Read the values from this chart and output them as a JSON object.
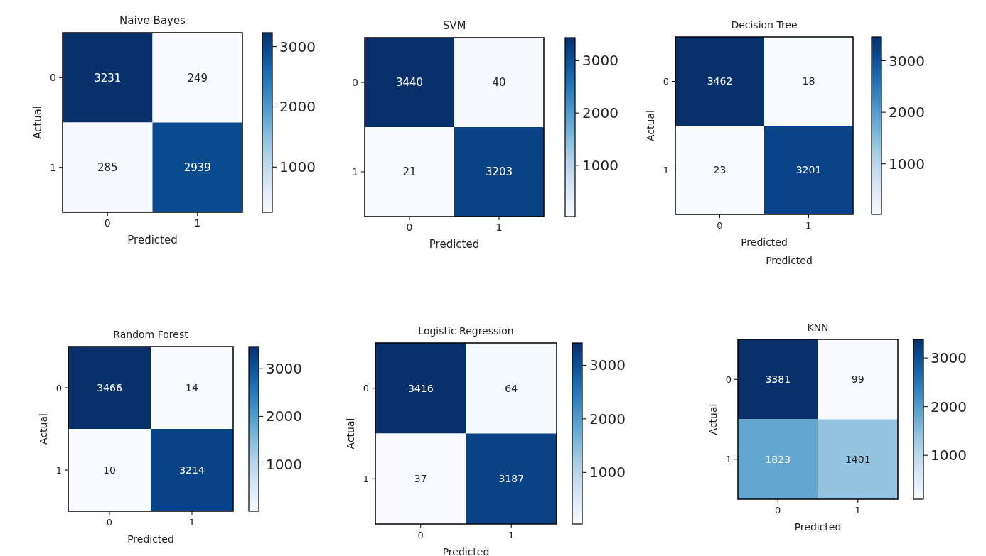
{
  "chart_data": [
    {
      "type": "heatmap",
      "title": "Naive Bayes",
      "xlabel": "Predicted",
      "ylabel": "Actual",
      "categories": [
        "0",
        "1"
      ],
      "y_categories": [
        "0",
        "1"
      ],
      "cells": [
        [
          3231,
          249
        ],
        [
          285,
          2939
        ]
      ],
      "clim": [
        249,
        3231
      ],
      "cticks": [
        1000,
        2000,
        3000
      ],
      "data_labels": true
    },
    {
      "type": "heatmap",
      "title": "SVM",
      "xlabel": "Predicted",
      "categories": [
        "0",
        "1"
      ],
      "y_categories": [
        "0",
        "1"
      ],
      "cells": [
        [
          3440,
          40
        ],
        [
          21,
          3203
        ]
      ],
      "clim": [
        21,
        3440
      ],
      "cticks": [
        1000,
        2000,
        3000
      ],
      "data_labels": true
    },
    {
      "type": "heatmap",
      "title": "Decision Tree",
      "xlabel": "Predicted",
      "ylabel": "Actual",
      "categories": [
        "0",
        "1"
      ],
      "y_categories": [
        "0",
        "1"
      ],
      "cells": [
        [
          3462,
          18
        ],
        [
          23,
          3201
        ]
      ],
      "clim": [
        18,
        3462
      ],
      "cticks": [
        1000,
        2000,
        3000
      ],
      "data_labels": true,
      "annotations": [
        "Predicted"
      ]
    },
    {
      "type": "heatmap",
      "title": "Random Forest",
      "xlabel": "Predicted",
      "ylabel": "Actual",
      "categories": [
        "0",
        "1"
      ],
      "y_categories": [
        "0",
        "1"
      ],
      "cells": [
        [
          3466,
          14
        ],
        [
          10,
          3214
        ]
      ],
      "clim": [
        10,
        3466
      ],
      "cticks": [
        1000,
        2000,
        3000
      ],
      "data_labels": true
    },
    {
      "type": "heatmap",
      "title": "Logistic Regression",
      "xlabel": "Predicted",
      "ylabel": "Actual",
      "categories": [
        "0",
        "1"
      ],
      "y_categories": [
        "0",
        "1"
      ],
      "cells": [
        [
          3416,
          64
        ],
        [
          37,
          3187
        ]
      ],
      "clim": [
        37,
        3416
      ],
      "cticks": [
        1000,
        2000,
        3000
      ],
      "data_labels": true
    },
    {
      "type": "heatmap",
      "title": "KNN",
      "xlabel": "Predicted",
      "ylabel": "Actual",
      "categories": [
        "0",
        "1"
      ],
      "y_categories": [
        "0",
        "1"
      ],
      "cells": [
        [
          3381,
          99
        ],
        [
          1823,
          1401
        ]
      ],
      "clim": [
        99,
        3381
      ],
      "cticks": [
        1000,
        2000,
        3000
      ],
      "data_labels": true
    }
  ]
}
